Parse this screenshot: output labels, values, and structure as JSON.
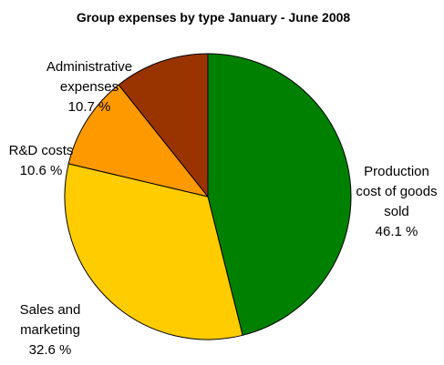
{
  "chart_data": {
    "type": "pie",
    "title": "Group expenses by type January - June 2008",
    "slices": [
      {
        "name": "Production cost of goods sold",
        "value": 46.1,
        "label_lines": [
          "Production",
          "cost of goods",
          "sold"
        ],
        "value_text": "46.1 %",
        "color": "#008000"
      },
      {
        "name": "Sales and marketing",
        "value": 32.6,
        "label_lines": [
          "Sales and",
          "marketing"
        ],
        "value_text": "32.6 %",
        "color": "#FFCC00"
      },
      {
        "name": "R&D costs",
        "value": 10.6,
        "label_lines": [
          "R&D costs"
        ],
        "value_text": "10.6 %",
        "color": "#FF9900"
      },
      {
        "name": "Administrative expenses",
        "value": 10.7,
        "label_lines": [
          "Administrative",
          "expenses"
        ],
        "value_text": "10.7 %",
        "color": "#993300"
      }
    ],
    "start_angle_deg": 0,
    "direction": "clockwise",
    "legend": "none",
    "border_color": "#000000"
  }
}
